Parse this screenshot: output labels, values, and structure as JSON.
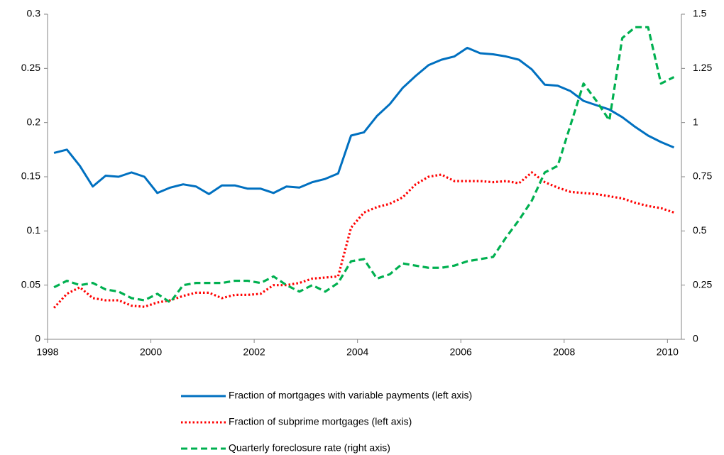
{
  "chart_data": {
    "type": "line",
    "x": [
      1998.125,
      1998.375,
      1998.625,
      1998.875,
      1999.125,
      1999.375,
      1999.625,
      1999.875,
      2000.125,
      2000.375,
      2000.625,
      2000.875,
      2001.125,
      2001.375,
      2001.625,
      2001.875,
      2002.125,
      2002.375,
      2002.625,
      2002.875,
      2003.125,
      2003.375,
      2003.625,
      2003.875,
      2004.125,
      2004.375,
      2004.625,
      2004.875,
      2005.125,
      2005.375,
      2005.625,
      2005.875,
      2006.125,
      2006.375,
      2006.625,
      2006.875,
      2007.125,
      2007.375,
      2007.625,
      2007.875,
      2008.125,
      2008.375,
      2008.625,
      2008.875,
      2009.125,
      2009.375,
      2009.625,
      2009.875,
      2010.125
    ],
    "series": [
      {
        "name": "Fraction of mortgages with variable payments (left axis)",
        "color": "#0070c0",
        "style": "solid",
        "values": [
          0.172,
          0.175,
          0.16,
          0.141,
          0.151,
          0.15,
          0.154,
          0.15,
          0.135,
          0.14,
          0.143,
          0.141,
          0.134,
          0.142,
          0.142,
          0.139,
          0.139,
          0.135,
          0.141,
          0.14,
          0.145,
          0.148,
          0.153,
          0.188,
          0.191,
          0.206,
          0.217,
          0.232,
          0.243,
          0.253,
          0.258,
          0.261,
          0.269,
          0.264,
          0.263,
          0.261,
          0.258,
          0.249,
          0.235,
          0.234,
          0.229,
          0.22,
          0.216,
          0.212,
          0.205,
          0.196,
          0.188,
          0.182,
          0.177
        ]
      },
      {
        "name": "Fraction of subprime mortgages (left axis)",
        "color": "#ff0000",
        "style": "dotted",
        "values": [
          0.029,
          0.042,
          0.048,
          0.038,
          0.036,
          0.036,
          0.031,
          0.03,
          0.034,
          0.036,
          0.04,
          0.043,
          0.043,
          0.038,
          0.041,
          0.041,
          0.042,
          0.05,
          0.05,
          0.052,
          0.056,
          0.057,
          0.058,
          0.103,
          0.117,
          0.122,
          0.125,
          0.131,
          0.143,
          0.15,
          0.152,
          0.146,
          0.146,
          0.146,
          0.145,
          0.146,
          0.144,
          0.154,
          0.145,
          0.14,
          0.136,
          0.135,
          0.134,
          0.132,
          0.13,
          0.126,
          0.123,
          0.121,
          0.117
        ]
      },
      {
        "name": "Quarterly foreclosure rate (right axis)",
        "color": "#00b050",
        "style": "dashed",
        "axis": "y2",
        "values": [
          0.24,
          0.27,
          0.25,
          0.26,
          0.23,
          0.22,
          0.19,
          0.18,
          0.21,
          0.17,
          0.25,
          0.26,
          0.26,
          0.26,
          0.27,
          0.27,
          0.26,
          0.29,
          0.25,
          0.22,
          0.25,
          0.22,
          0.26,
          0.36,
          0.37,
          0.28,
          0.3,
          0.35,
          0.34,
          0.33,
          0.33,
          0.34,
          0.36,
          0.37,
          0.38,
          0.47,
          0.55,
          0.64,
          0.77,
          0.8,
          0.99,
          1.18,
          1.1,
          1.01,
          1.39,
          1.44,
          1.44,
          1.18,
          1.21
        ]
      }
    ],
    "xlim": [
      1998,
      2010.27
    ],
    "xticks": [
      1998,
      2000,
      2002,
      2004,
      2006,
      2008,
      2010
    ],
    "ylim": [
      0,
      0.3
    ],
    "yticks": [
      0,
      0.05,
      0.1,
      0.15,
      0.2,
      0.25,
      0.3
    ],
    "y2lim": [
      0,
      1.5
    ],
    "y2ticks": [
      0,
      0.25,
      0.5,
      0.75,
      1,
      1.25,
      1.5
    ],
    "grid": false,
    "legend": "bottom"
  }
}
